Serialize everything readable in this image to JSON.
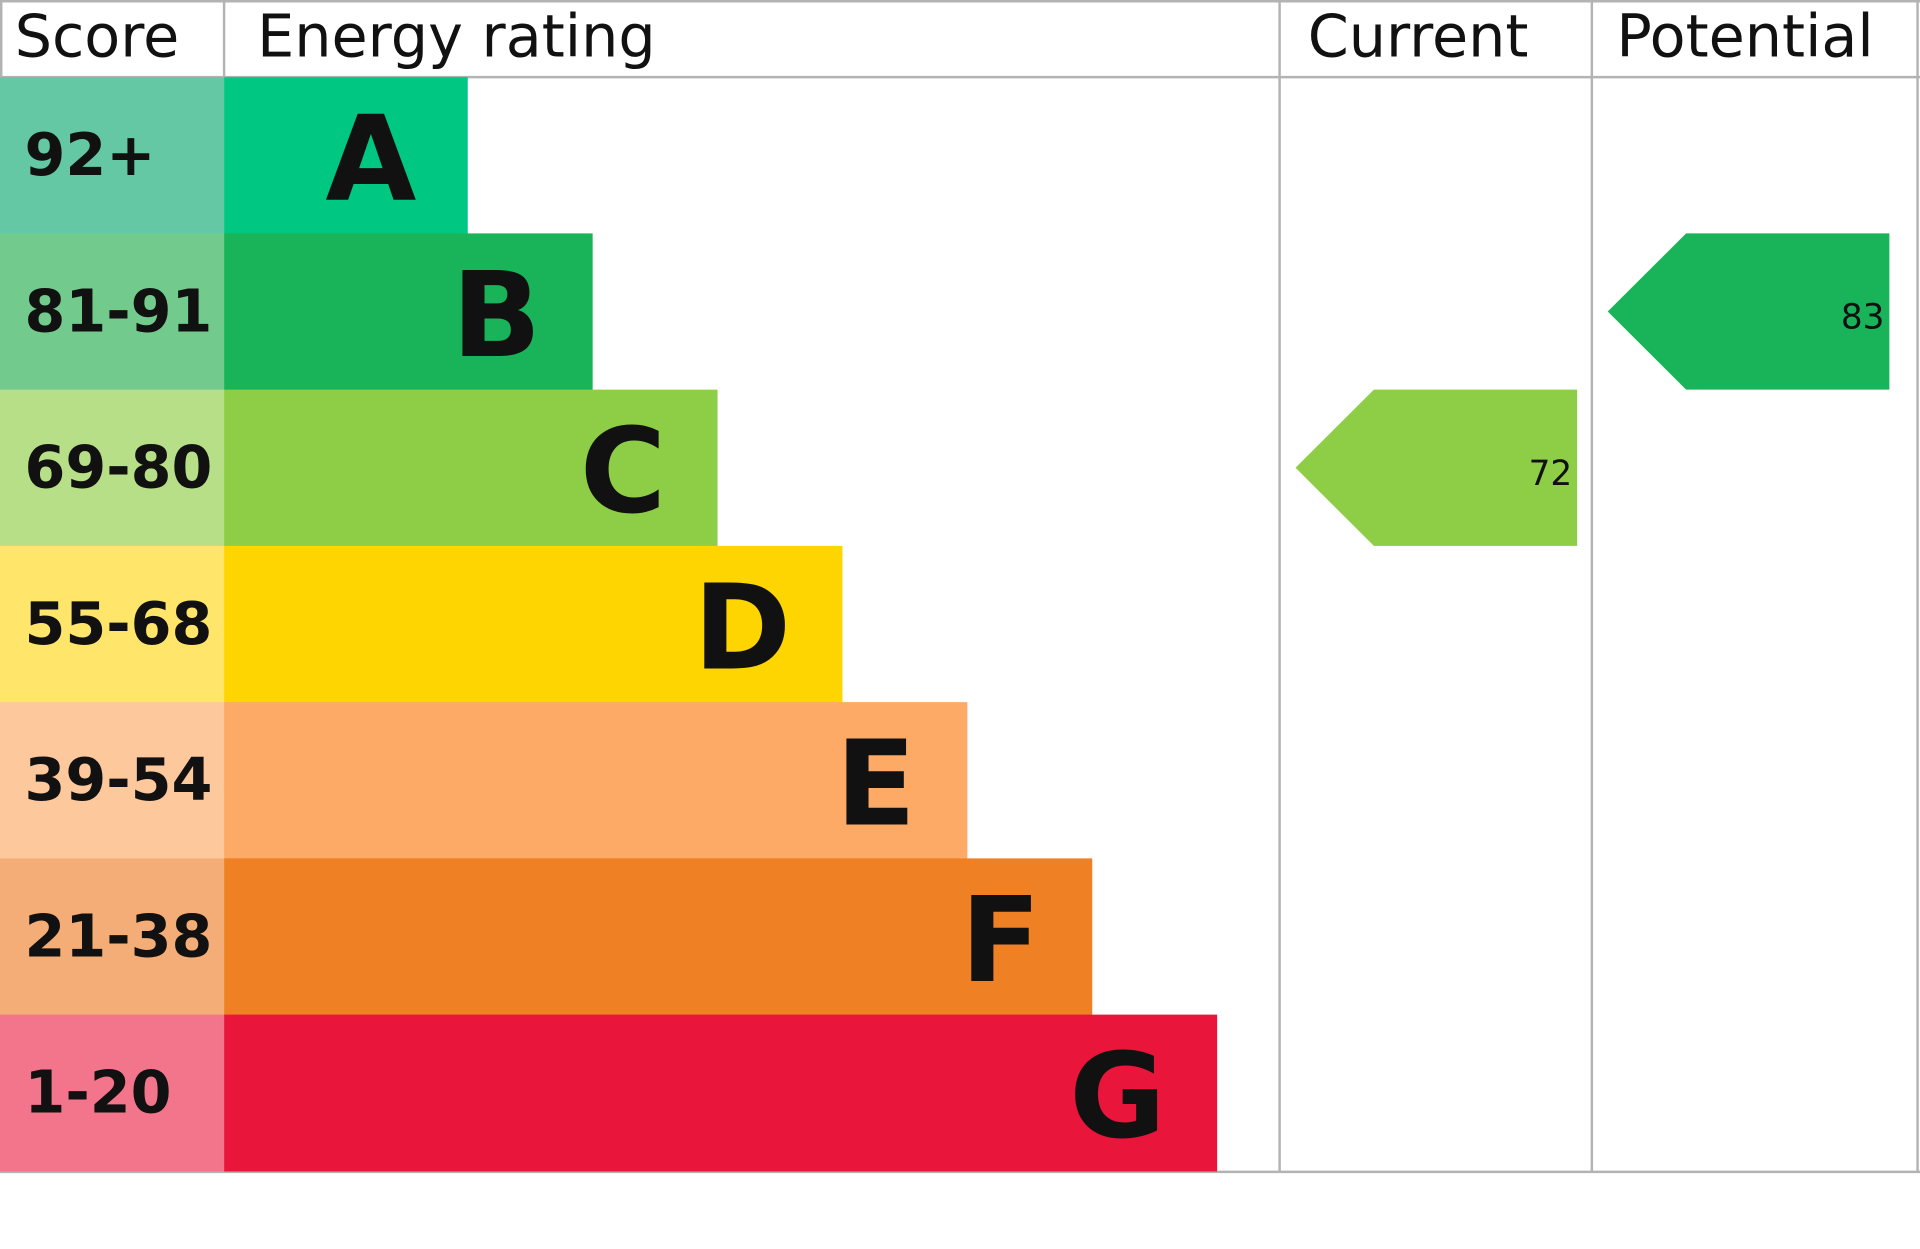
{
  "header": {
    "score": "Score",
    "energy_rating": "Energy rating",
    "current": "Current",
    "potential": "Potential"
  },
  "bands": [
    {
      "letter": "A",
      "range": "92+",
      "color": "#00c781",
      "light": "#64c8a4"
    },
    {
      "letter": "B",
      "range": "81-91",
      "color": "#19b459",
      "light": "#72cb8d"
    },
    {
      "letter": "C",
      "range": "69-80",
      "color": "#8dce46",
      "light": "#b6df87"
    },
    {
      "letter": "D",
      "range": "55-68",
      "color": "#ffd500",
      "light": "#ffe56a"
    },
    {
      "letter": "E",
      "range": "39-54",
      "color": "#fcaa65",
      "light": "#fec89d"
    },
    {
      "letter": "F",
      "range": "21-38",
      "color": "#ef8023",
      "light": "#f4ad76"
    },
    {
      "letter": "G",
      "range": "1-20",
      "color": "#e9153b",
      "light": "#f2758b"
    }
  ],
  "current": {
    "value": "72",
    "band": "C",
    "color": "#8dce46"
  },
  "potential": {
    "value": "83",
    "band": "B",
    "color": "#19b459"
  },
  "chart_data": {
    "type": "bar",
    "categories": [
      "A",
      "B",
      "C",
      "D",
      "E",
      "F",
      "G"
    ],
    "score_ranges": [
      "92+",
      "81-91",
      "69-80",
      "55-68",
      "39-54",
      "21-38",
      "1-20"
    ],
    "current": 72,
    "potential": 83
  }
}
